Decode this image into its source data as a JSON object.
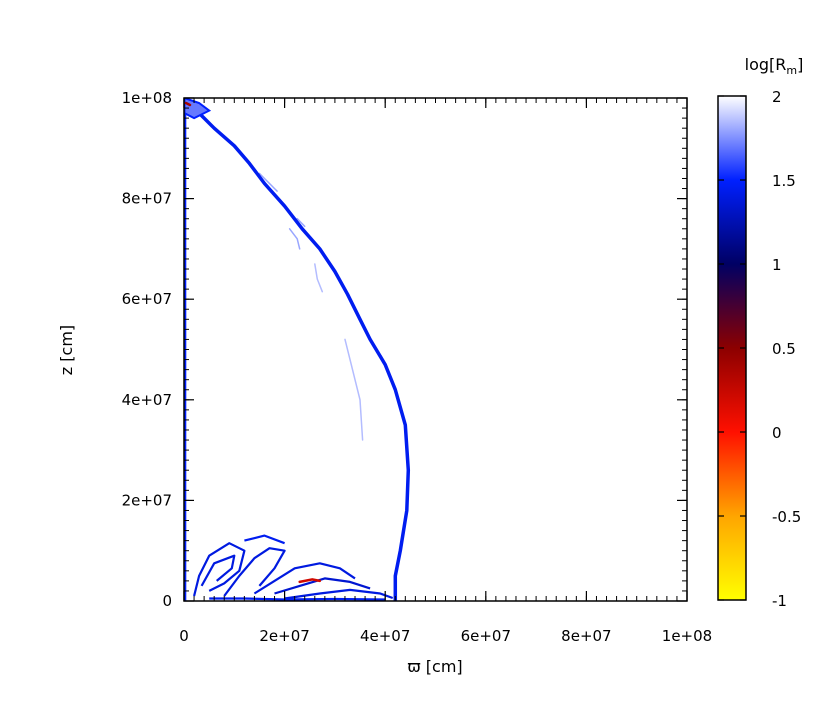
{
  "chart_data": {
    "type": "heatmap",
    "title": "",
    "xlabel": "ϖ [cm]",
    "ylabel": "z [cm]",
    "xlim": [
      0,
      100000000
    ],
    "ylim": [
      0,
      100000000
    ],
    "x_ticks": [
      {
        "value": 0,
        "label": "0"
      },
      {
        "value": 20000000,
        "label": "2e+07"
      },
      {
        "value": 40000000,
        "label": "4e+07"
      },
      {
        "value": 60000000,
        "label": "6e+07"
      },
      {
        "value": 80000000,
        "label": "8e+07"
      },
      {
        "value": 100000000,
        "label": "1e+08"
      }
    ],
    "y_ticks": [
      {
        "value": 0,
        "label": "0"
      },
      {
        "value": 20000000,
        "label": "2e+07"
      },
      {
        "value": 40000000,
        "label": "4e+07"
      },
      {
        "value": 60000000,
        "label": "6e+07"
      },
      {
        "value": 80000000,
        "label": "8e+07"
      },
      {
        "value": 100000000,
        "label": "1e+08"
      }
    ],
    "grid": false,
    "colorbar": {
      "label": "log[R_m]",
      "label_main": "log[R",
      "label_sub": "m",
      "label_close": "]",
      "range": [
        -1,
        2
      ],
      "ticks": [
        {
          "value": 2,
          "label": "2"
        },
        {
          "value": 1.5,
          "label": "1.5"
        },
        {
          "value": 1,
          "label": "1"
        },
        {
          "value": 0.5,
          "label": "0.5"
        },
        {
          "value": 0,
          "label": "0"
        },
        {
          "value": -0.5,
          "label": "-0.5"
        },
        {
          "value": -1,
          "label": "-1"
        }
      ],
      "colormap": [
        {
          "value": -1,
          "color": "#ffff00"
        },
        {
          "value": -0.5,
          "color": "#ffa500"
        },
        {
          "value": 0,
          "color": "#ff1000"
        },
        {
          "value": 0.5,
          "color": "#8c0000"
        },
        {
          "value": 1,
          "color": "#000064"
        },
        {
          "value": 1.5,
          "color": "#0020ff"
        },
        {
          "value": 2,
          "color": "#ffffff"
        }
      ]
    },
    "features": {
      "shock_front": {
        "value": 1.45,
        "points": [
          [
            100000,
            99500000
          ],
          [
            2500000,
            97500000
          ],
          [
            6000000,
            94000000
          ],
          [
            10000000,
            90500000
          ],
          [
            13000000,
            87000000
          ],
          [
            16000000,
            83000000
          ],
          [
            20000000,
            78500000
          ],
          [
            23500000,
            74000000
          ],
          [
            27000000,
            70000000
          ],
          [
            30000000,
            65500000
          ],
          [
            32500000,
            61000000
          ],
          [
            35000000,
            56000000
          ],
          [
            37000000,
            52000000
          ],
          [
            40000000,
            47000000
          ],
          [
            42000000,
            42000000
          ],
          [
            44000000,
            35000000
          ],
          [
            44600000,
            26000000
          ],
          [
            44300000,
            18000000
          ],
          [
            43000000,
            10000000
          ],
          [
            42000000,
            5000000
          ],
          [
            42000000,
            0
          ]
        ]
      },
      "axis_strip": {
        "value": 1.5,
        "points": [
          [
            150000,
            100000000
          ],
          [
            150000,
            0
          ]
        ]
      },
      "top_blob": {
        "value": 1.7,
        "points": [
          [
            100000,
            100000000
          ],
          [
            3000000,
            99000000
          ],
          [
            5000000,
            97500000
          ],
          [
            2000000,
            96000000
          ],
          [
            100000,
            97000000
          ]
        ]
      },
      "wisps": [
        {
          "value": 1.8,
          "points": [
            [
              15000000,
              85000000
            ],
            [
              17000000,
              83000000
            ],
            [
              18500000,
              81500000
            ]
          ]
        },
        {
          "value": 1.8,
          "points": [
            [
              21000000,
              74000000
            ],
            [
              22500000,
              72000000
            ],
            [
              23000000,
              70000000
            ]
          ]
        },
        {
          "value": 1.85,
          "points": [
            [
              26000000,
              67000000
            ],
            [
              26500000,
              64000000
            ],
            [
              27500000,
              61500000
            ]
          ]
        },
        {
          "value": 1.85,
          "points": [
            [
              32000000,
              52000000
            ],
            [
              33500000,
              46000000
            ],
            [
              35000000,
              40000000
            ],
            [
              35500000,
              32000000
            ]
          ]
        },
        {
          "value": 1.8,
          "points": [
            [
              22500000,
              76000000
            ],
            [
              24000000,
              74500000
            ]
          ]
        }
      ],
      "base_loops": [
        {
          "value": 1.4,
          "points": [
            [
              2000000,
              1000000
            ],
            [
              3000000,
              5000000
            ],
            [
              5000000,
              9000000
            ],
            [
              9000000,
              11500000
            ],
            [
              12000000,
              10000000
            ],
            [
              11000000,
              6000000
            ],
            [
              8000000,
              3500000
            ],
            [
              5000000,
              2000000
            ]
          ]
        },
        {
          "value": 1.4,
          "points": [
            [
              3500000,
              3000000
            ],
            [
              6000000,
              7500000
            ],
            [
              10000000,
              9000000
            ],
            [
              9500000,
              6500000
            ],
            [
              6500000,
              4000000
            ]
          ]
        },
        {
          "value": 1.4,
          "points": [
            [
              8000000,
              1000000
            ],
            [
              11000000,
              5000000
            ],
            [
              14000000,
              8500000
            ],
            [
              17000000,
              10500000
            ],
            [
              20000000,
              10000000
            ],
            [
              18000000,
              6500000
            ],
            [
              15000000,
              3000000
            ]
          ]
        },
        {
          "value": 1.4,
          "points": [
            [
              14000000,
              1500000
            ],
            [
              18000000,
              4000000
            ],
            [
              22000000,
              6500000
            ],
            [
              27000000,
              7500000
            ],
            [
              31000000,
              6500000
            ],
            [
              34000000,
              4500000
            ]
          ]
        },
        {
          "value": 1.35,
          "points": [
            [
              18000000,
              1500000
            ],
            [
              23000000,
              3000000
            ],
            [
              28000000,
              4500000
            ],
            [
              33000000,
              3800000
            ],
            [
              37000000,
              2500000
            ]
          ]
        },
        {
          "value": 1.4,
          "points": [
            [
              20000000,
              500000
            ],
            [
              27000000,
              1500000
            ],
            [
              33000000,
              2200000
            ],
            [
              39000000,
              1500000
            ],
            [
              41500000,
              600000
            ]
          ]
        },
        {
          "value": 1.45,
          "points": [
            [
              5000000,
              500000
            ],
            [
              12000000,
              500000
            ],
            [
              20000000,
              300000
            ],
            [
              30000000,
              400000
            ],
            [
              40000000,
              300000
            ]
          ]
        },
        {
          "value": 1.45,
          "points": [
            [
              12000000,
              12000000
            ],
            [
              16000000,
              13000000
            ],
            [
              20000000,
              11500000
            ]
          ]
        }
      ],
      "base_hotspots": [
        {
          "value": 0.2,
          "points": [
            [
              23000000,
              3800000
            ],
            [
              25500000,
              4300000
            ],
            [
              27000000,
              4000000
            ]
          ]
        },
        {
          "value": 0.4,
          "points": [
            [
              400000,
              99000000
            ],
            [
              1200000,
              98600000
            ]
          ]
        }
      ]
    }
  }
}
